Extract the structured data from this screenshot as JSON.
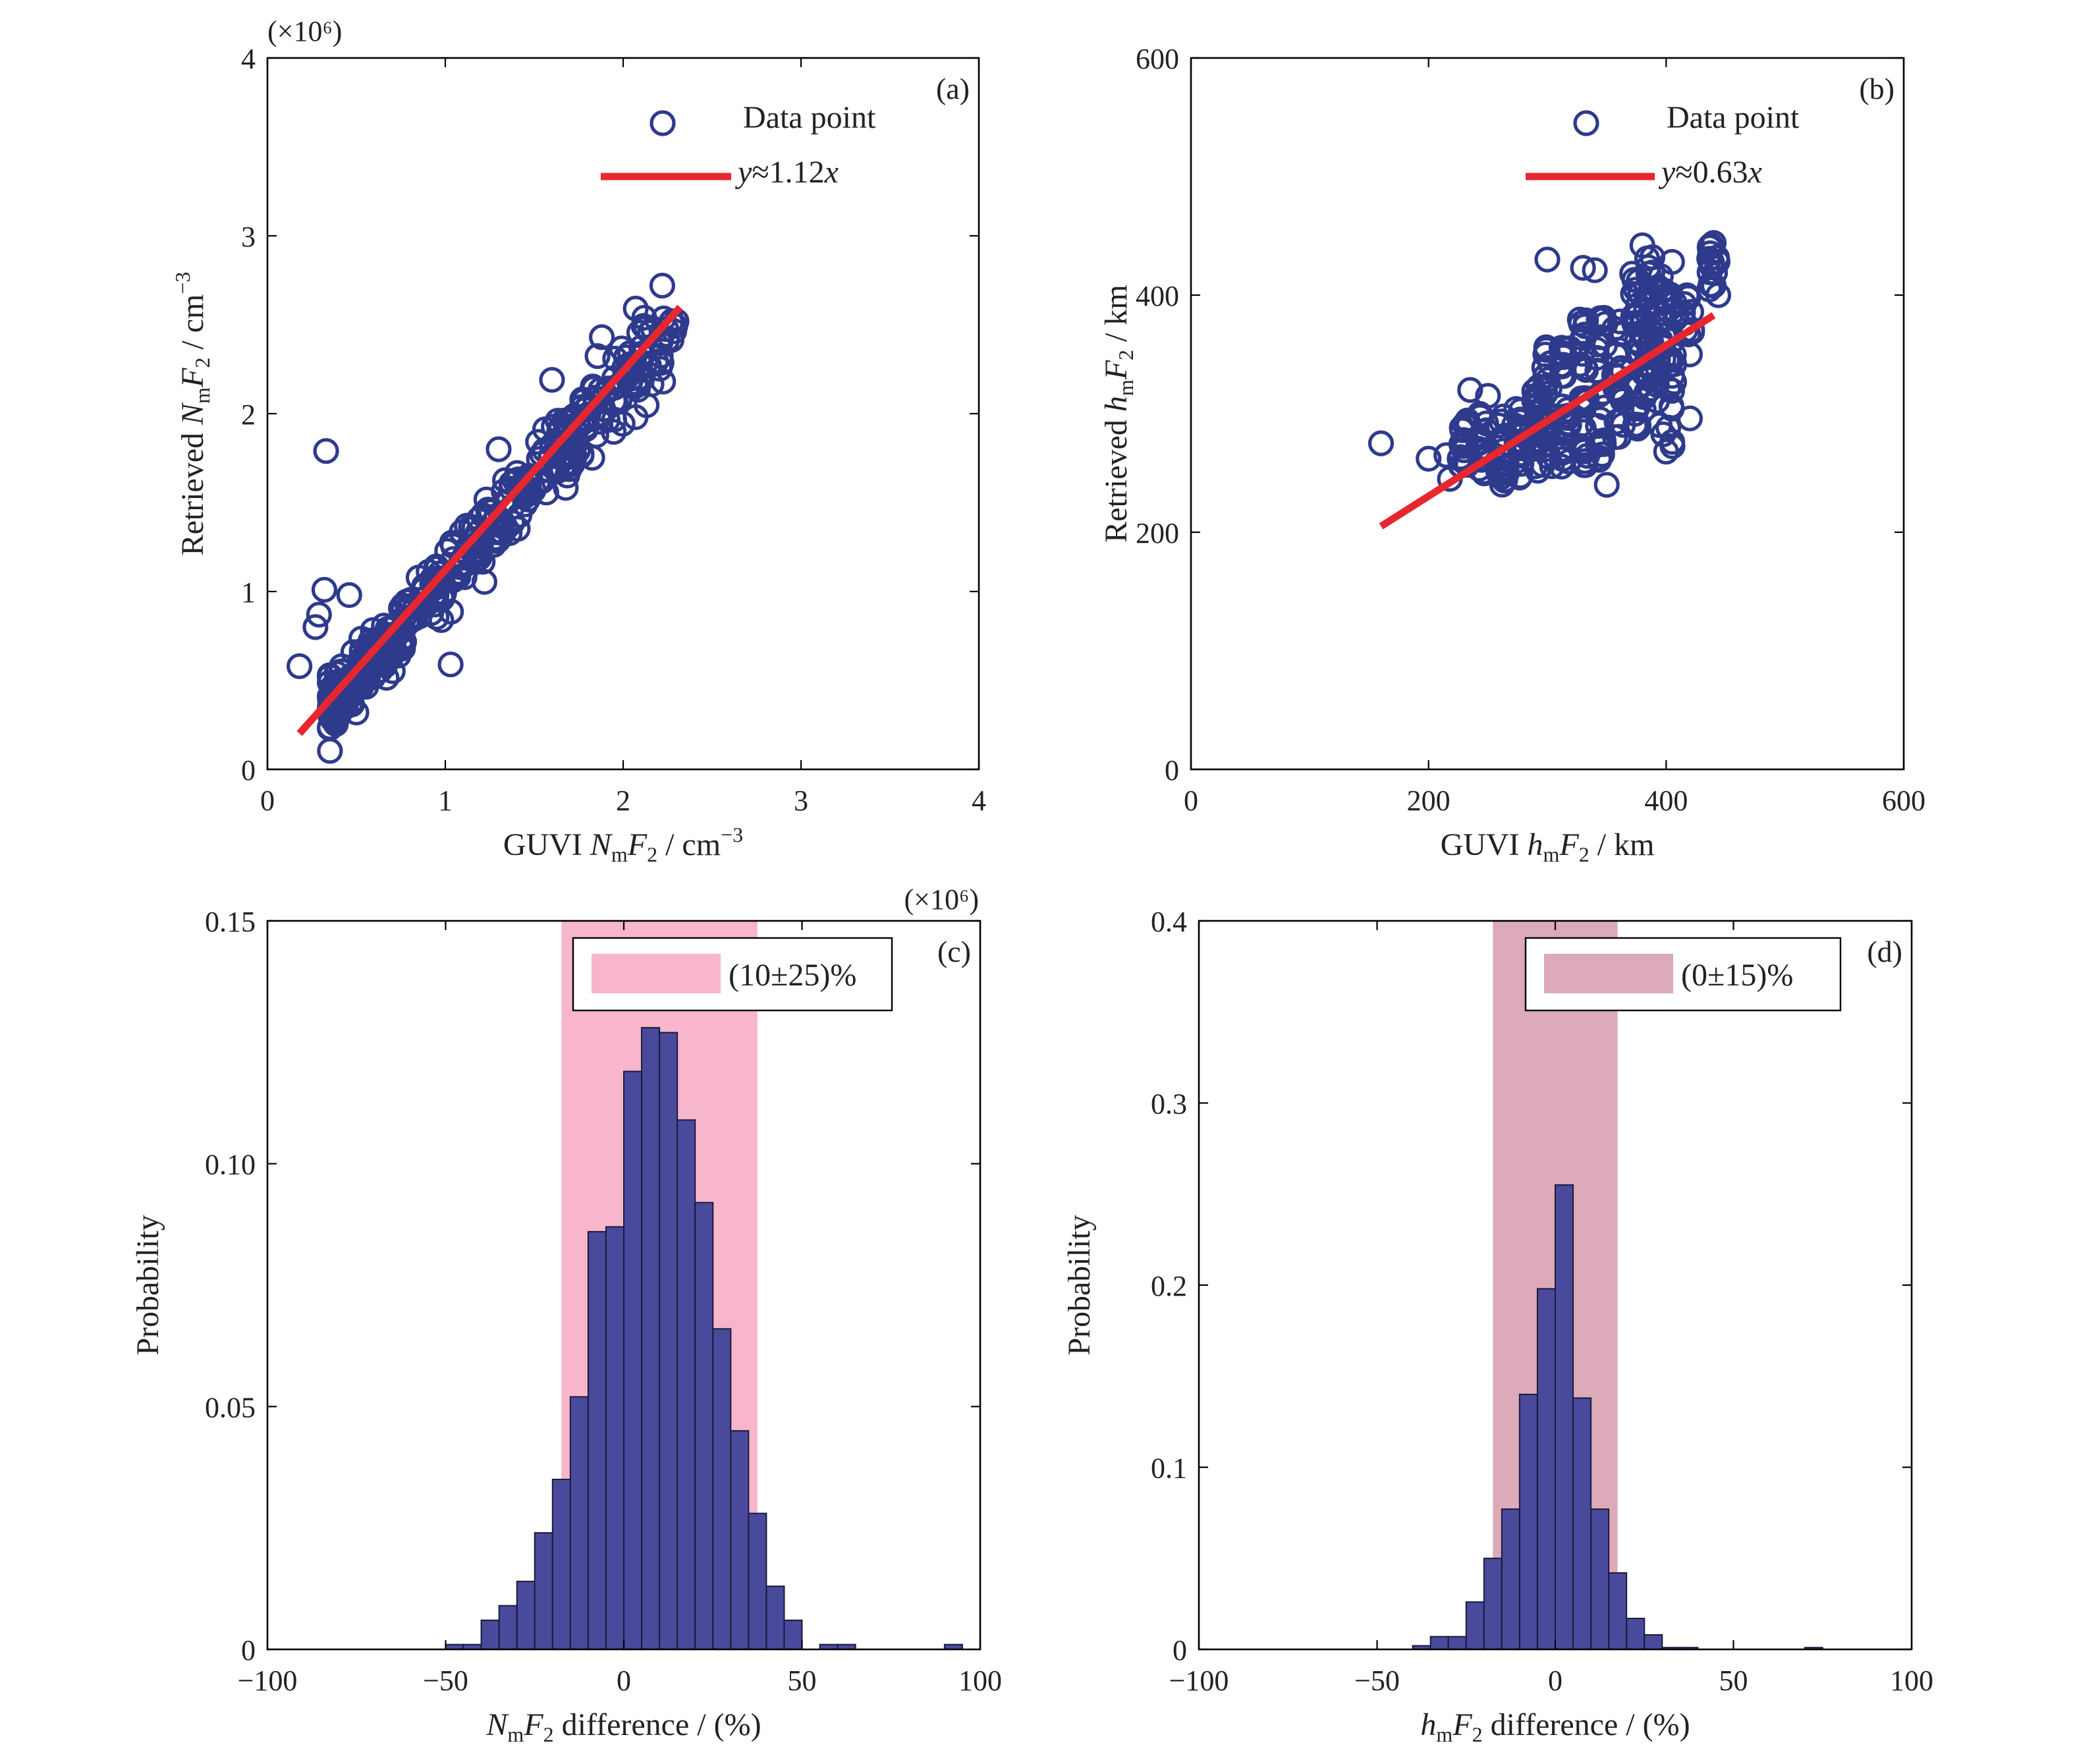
{
  "colors": {
    "marker": "#2e3a8c",
    "bar": "#4a4a9c",
    "fit": "#e8262e",
    "shade_c": "#f7b6cb",
    "shade_d": "#dcaab8"
  },
  "chart_data": [
    {
      "id": "a",
      "type": "scatter",
      "panel_label": "(a)",
      "multiplier_x": "(×10⁶)",
      "multiplier_y": "(×10⁶)",
      "xlabel": {
        "prefix": "GUVI ",
        "var": "N",
        "sub": "m",
        "var2": "F",
        "sub2": "2",
        "suffix": " / cm",
        "sup": "−3"
      },
      "ylabel": {
        "prefix": "Retrieved ",
        "var": "N",
        "sub": "m",
        "var2": "F",
        "sub2": "2",
        "suffix": " / cm",
        "sup": "−3"
      },
      "xlim": [
        0,
        4
      ],
      "ylim": [
        0,
        4
      ],
      "xticks": [
        0,
        1,
        2,
        3,
        4
      ],
      "yticks": [
        0,
        1,
        2,
        3,
        4
      ],
      "xtick_labels": [
        "0",
        "1",
        "2",
        "3",
        "4"
      ],
      "ytick_labels": [
        "0",
        "1",
        "2",
        "3",
        "4"
      ],
      "legend": {
        "scatter_label": "Data point",
        "fit_label_var": "y",
        "fit_label_rest": "≈1.12",
        "fit_label_var2": "x"
      },
      "fit": {
        "slope": 1.12,
        "x_range": [
          0.18,
          2.32
        ]
      },
      "outliers": [
        [
          0.33,
          1.79
        ],
        [
          0.18,
          0.58
        ],
        [
          0.32,
          1.01
        ],
        [
          0.29,
          0.87
        ],
        [
          0.27,
          0.8
        ],
        [
          0.46,
          0.98
        ],
        [
          0.35,
          0.52
        ],
        [
          1.03,
          0.59
        ],
        [
          1.88,
          2.43
        ],
        [
          2.22,
          2.72
        ],
        [
          2.3,
          2.52
        ],
        [
          2.07,
          1.98
        ],
        [
          1.95,
          2.2
        ],
        [
          1.6,
          2.19
        ],
        [
          1.3,
          1.8
        ],
        [
          0.4,
          0.3
        ],
        [
          0.5,
          0.32
        ]
      ],
      "cloud": {
        "x_range": [
          0.35,
          2.3
        ],
        "spread": 0.1,
        "count": 420
      }
    },
    {
      "id": "b",
      "type": "scatter",
      "panel_label": "(b)",
      "xlabel": {
        "prefix": "GUVI ",
        "var": "h",
        "sub": "m",
        "var2": "F",
        "sub2": "2",
        "suffix": " / km"
      },
      "ylabel": {
        "prefix": "Retrieved ",
        "var": "h",
        "sub": "m",
        "var2": "F",
        "sub2": "2",
        "suffix": " / km"
      },
      "xlim": [
        0,
        600
      ],
      "ylim": [
        0,
        600
      ],
      "xticks": [
        0,
        200,
        400,
        600
      ],
      "yticks": [
        0,
        200,
        400,
        600
      ],
      "xtick_labels": [
        "0",
        "200",
        "400",
        "600"
      ],
      "ytick_labels": [
        "0",
        "200",
        "400",
        "600"
      ],
      "legend": {
        "scatter_label": "Data point",
        "fit_label_var": "y",
        "fit_label_rest": "≈0.63",
        "fit_label_var2": "x"
      },
      "fit": {
        "x_range": [
          160,
          440
        ],
        "y_range": [
          205,
          383
        ]
      },
      "outliers": [
        [
          160,
          275
        ],
        [
          200,
          262
        ],
        [
          215,
          265
        ],
        [
          218,
          245
        ],
        [
          235,
          320
        ],
        [
          250,
          315
        ],
        [
          380,
          442
        ],
        [
          340,
          421
        ],
        [
          300,
          430
        ],
        [
          440,
          444
        ],
        [
          440,
          408
        ],
        [
          420,
          350
        ],
        [
          400,
          268
        ],
        [
          350,
          240
        ],
        [
          420,
          296
        ],
        [
          330,
          423
        ],
        [
          385,
          418
        ],
        [
          405,
          428
        ]
      ],
      "columns": [
        {
          "x": 230,
          "y0": 255,
          "y1": 295,
          "n": 18
        },
        {
          "x": 245,
          "y0": 245,
          "y1": 300,
          "n": 18
        },
        {
          "x": 262,
          "y0": 240,
          "y1": 300,
          "n": 20
        },
        {
          "x": 275,
          "y0": 245,
          "y1": 310,
          "n": 20
        },
        {
          "x": 290,
          "y0": 250,
          "y1": 330,
          "n": 22
        },
        {
          "x": 300,
          "y0": 255,
          "y1": 365,
          "n": 26
        },
        {
          "x": 315,
          "y0": 255,
          "y1": 370,
          "n": 26
        },
        {
          "x": 330,
          "y0": 255,
          "y1": 380,
          "n": 26
        },
        {
          "x": 345,
          "y0": 260,
          "y1": 385,
          "n": 24
        },
        {
          "x": 360,
          "y0": 280,
          "y1": 385,
          "n": 22
        },
        {
          "x": 375,
          "y0": 285,
          "y1": 420,
          "n": 26
        },
        {
          "x": 385,
          "y0": 290,
          "y1": 440,
          "n": 28
        },
        {
          "x": 395,
          "y0": 275,
          "y1": 425,
          "n": 24
        },
        {
          "x": 405,
          "y0": 270,
          "y1": 420,
          "n": 22
        },
        {
          "x": 418,
          "y0": 360,
          "y1": 400,
          "n": 10
        },
        {
          "x": 440,
          "y0": 395,
          "y1": 448,
          "n": 14
        }
      ]
    },
    {
      "id": "c",
      "type": "bar",
      "panel_label": "(c)",
      "ylabel": "Probability",
      "xlabel": {
        "prefix": "",
        "var": "N",
        "sub": "m",
        "var2": "F",
        "sub2": "2",
        "suffix": " difference / (%)"
      },
      "xlim": [
        -100,
        100
      ],
      "ylim": [
        0,
        0.15
      ],
      "xticks": [
        -100,
        -50,
        0,
        50,
        100
      ],
      "yticks": [
        0,
        0.05,
        0.1,
        0.15
      ],
      "xtick_labels": [
        "−100",
        "−50",
        "0",
        "50",
        "100"
      ],
      "ytick_labels": [
        "0",
        "0.05",
        "0.10",
        "0.15"
      ],
      "band": [
        -17.5,
        37.5
      ],
      "legend": {
        "label": "(10±25)%"
      },
      "bin_width": 5,
      "bins": [
        {
          "x": -47.5,
          "p": 0.001
        },
        {
          "x": -42.5,
          "p": 0.001
        },
        {
          "x": -37.5,
          "p": 0.006
        },
        {
          "x": -32.5,
          "p": 0.009
        },
        {
          "x": -27.5,
          "p": 0.014
        },
        {
          "x": -22.5,
          "p": 0.024
        },
        {
          "x": -17.5,
          "p": 0.035
        },
        {
          "x": -12.5,
          "p": 0.052
        },
        {
          "x": -7.5,
          "p": 0.086
        },
        {
          "x": -2.5,
          "p": 0.087
        },
        {
          "x": 2.5,
          "p": 0.119
        },
        {
          "x": 7.5,
          "p": 0.128
        },
        {
          "x": 12.5,
          "p": 0.127
        },
        {
          "x": 17.5,
          "p": 0.109
        },
        {
          "x": 22.5,
          "p": 0.092
        },
        {
          "x": 27.5,
          "p": 0.066
        },
        {
          "x": 32.5,
          "p": 0.045
        },
        {
          "x": 37.5,
          "p": 0.028
        },
        {
          "x": 42.5,
          "p": 0.013
        },
        {
          "x": 47.5,
          "p": 0.006
        },
        {
          "x": 57.5,
          "p": 0.001
        },
        {
          "x": 62.5,
          "p": 0.001
        },
        {
          "x": 92.5,
          "p": 0.001
        }
      ]
    },
    {
      "id": "d",
      "type": "bar",
      "panel_label": "(d)",
      "ylabel": "Probability",
      "xlabel": {
        "prefix": "",
        "var": "h",
        "sub": "m",
        "var2": "F",
        "sub2": "2",
        "suffix": " difference / (%)"
      },
      "xlim": [
        -100,
        100
      ],
      "ylim": [
        0,
        0.4
      ],
      "xticks": [
        -100,
        -50,
        0,
        50,
        100
      ],
      "yticks": [
        0,
        0.1,
        0.2,
        0.3,
        0.4
      ],
      "xtick_labels": [
        "−100",
        "−50",
        "0",
        "50",
        "100"
      ],
      "ytick_labels": [
        "0",
        "0.1",
        "0.2",
        "0.3",
        "0.4"
      ],
      "band": [
        -17.5,
        17.5
      ],
      "legend": {
        "label": "(0±15)%"
      },
      "bin_width": 5,
      "bins": [
        {
          "x": -37.5,
          "p": 0.002
        },
        {
          "x": -32.5,
          "p": 0.007
        },
        {
          "x": -27.5,
          "p": 0.007
        },
        {
          "x": -22.5,
          "p": 0.026
        },
        {
          "x": -17.5,
          "p": 0.05
        },
        {
          "x": -12.5,
          "p": 0.077
        },
        {
          "x": -7.5,
          "p": 0.14
        },
        {
          "x": -2.5,
          "p": 0.198
        },
        {
          "x": 2.5,
          "p": 0.255
        },
        {
          "x": 7.5,
          "p": 0.138
        },
        {
          "x": 12.5,
          "p": 0.077
        },
        {
          "x": 17.5,
          "p": 0.042
        },
        {
          "x": 22.5,
          "p": 0.017
        },
        {
          "x": 27.5,
          "p": 0.008
        },
        {
          "x": 32.5,
          "p": 0.001
        },
        {
          "x": 37.5,
          "p": 0.001
        },
        {
          "x": 72.5,
          "p": 0.001
        }
      ]
    }
  ]
}
